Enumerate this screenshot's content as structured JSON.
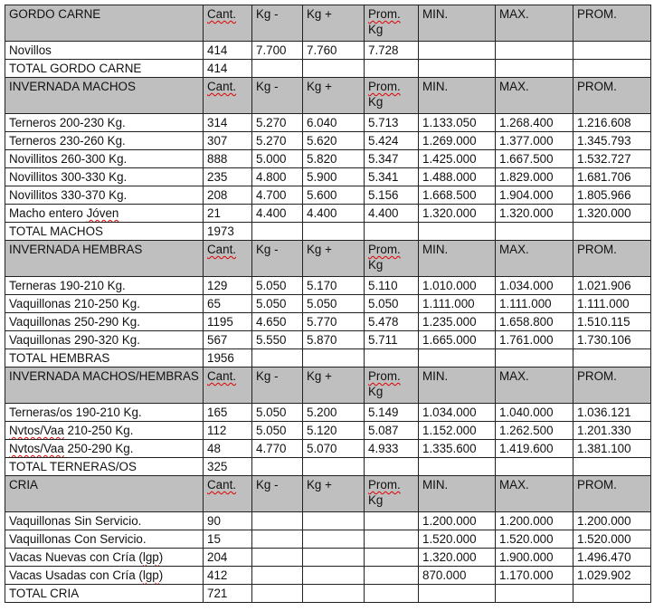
{
  "columns": [
    "Cant.",
    "Kg -",
    "Kg +",
    "Prom. Kg",
    "MIN.",
    "MAX.",
    "PROM."
  ],
  "header_color": "#bfbfbf",
  "sections": [
    {
      "title": "GORDO CARNE",
      "rows": [
        [
          "Novillos",
          "414",
          "7.700",
          "7.760",
          "7.728",
          "",
          "",
          ""
        ]
      ],
      "total": [
        "TOTAL GORDO CARNE",
        "414"
      ]
    },
    {
      "title": "INVERNADA MACHOS",
      "rows": [
        [
          "Terneros 200-230 Kg.",
          "314",
          "5.270",
          "6.040",
          "5.713",
          "1.133.050",
          "1.268.400",
          "1.216.608"
        ],
        [
          "Terneros 230-260 Kg.",
          "307",
          "5.270",
          "5.620",
          "5.424",
          "1.269.000",
          "1.377.000",
          "1.345.793"
        ],
        [
          "Novillitos 260-300 Kg.",
          "888",
          "5.000",
          "5.820",
          "5.347",
          "1.425.000",
          "1.667.500",
          "1.532.727"
        ],
        [
          "Novillitos 300-330 Kg.",
          "235",
          "4.800",
          "5.900",
          "5.341",
          "1.488.000",
          "1.829.000",
          "1.681.706"
        ],
        [
          "Novillitos 330-370 Kg.",
          "208",
          "4.700",
          "5.600",
          "5.156",
          "1.668.500",
          "1.904.000",
          "1.805.966"
        ],
        [
          "Macho entero Jóven",
          "21",
          "4.400",
          "4.400",
          "4.400",
          "1.320.000",
          "1.320.000",
          "1.320.000"
        ]
      ],
      "total": [
        "TOTAL MACHOS",
        "1973"
      ]
    },
    {
      "title": "INVERNADA HEMBRAS",
      "rows": [
        [
          "Terneras 190-210 Kg.",
          "129",
          "5.050",
          "5.170",
          "5.110",
          "1.010.000",
          "1.034.000",
          "1.021.906"
        ],
        [
          "Vaquillonas 210-250 Kg.",
          "65",
          "5.050",
          "5.050",
          "5.050",
          "1.111.000",
          "1.111.000",
          "1.111.000"
        ],
        [
          "Vaquillonas 250-290 Kg.",
          "1195",
          "4.650",
          "5.770",
          "5.478",
          "1.235.000",
          "1.658.800",
          "1.510.115"
        ],
        [
          "Vaquillonas 290-320 Kg.",
          "567",
          "5.550",
          "5.870",
          "5.711",
          "1.665.000",
          "1.761.000",
          "1.730.106"
        ]
      ],
      "total": [
        "TOTAL HEMBRAS",
        "1956"
      ]
    },
    {
      "title": "INVERNADA MACHOS/HEMBRAS",
      "rows": [
        [
          "Terneras/os 190-210 Kg.",
          "165",
          "5.050",
          "5.200",
          "5.149",
          "1.034.000",
          "1.040.000",
          "1.036.121"
        ],
        [
          "Nvtos/Vaa 210-250 Kg.",
          "112",
          "5.050",
          "5.120",
          "5.087",
          "1.152.000",
          "1.262.500",
          "1.201.330"
        ],
        [
          "Nvtos/Vaa 250-290 Kg.",
          "48",
          "4.770",
          "5.070",
          "4.933",
          "1.335.600",
          "1.419.600",
          "1.381.100"
        ]
      ],
      "total": [
        "TOTAL TERNERAS/OS",
        "325"
      ]
    },
    {
      "title": "CRIA",
      "rows": [
        [
          "Vaquillonas Sin Servicio.",
          "90",
          "",
          "",
          "",
          "1.200.000",
          "1.200.000",
          "1.200.000"
        ],
        [
          "Vaquillonas Con Servicio.",
          "15",
          "",
          "",
          "",
          "1.520.000",
          "1.520.000",
          "1.520.000"
        ],
        [
          "Vacas Nuevas con Cría (lgp)",
          "204",
          "",
          "",
          "",
          "1.320.000",
          "1.900.000",
          "1.496.470"
        ],
        [
          "Vacas Usadas con Cría (lgp)",
          "412",
          "",
          "",
          "",
          "870.000",
          "1.170.000",
          "1.029.902"
        ]
      ],
      "total": [
        "TOTAL CRIA",
        "721"
      ]
    }
  ]
}
